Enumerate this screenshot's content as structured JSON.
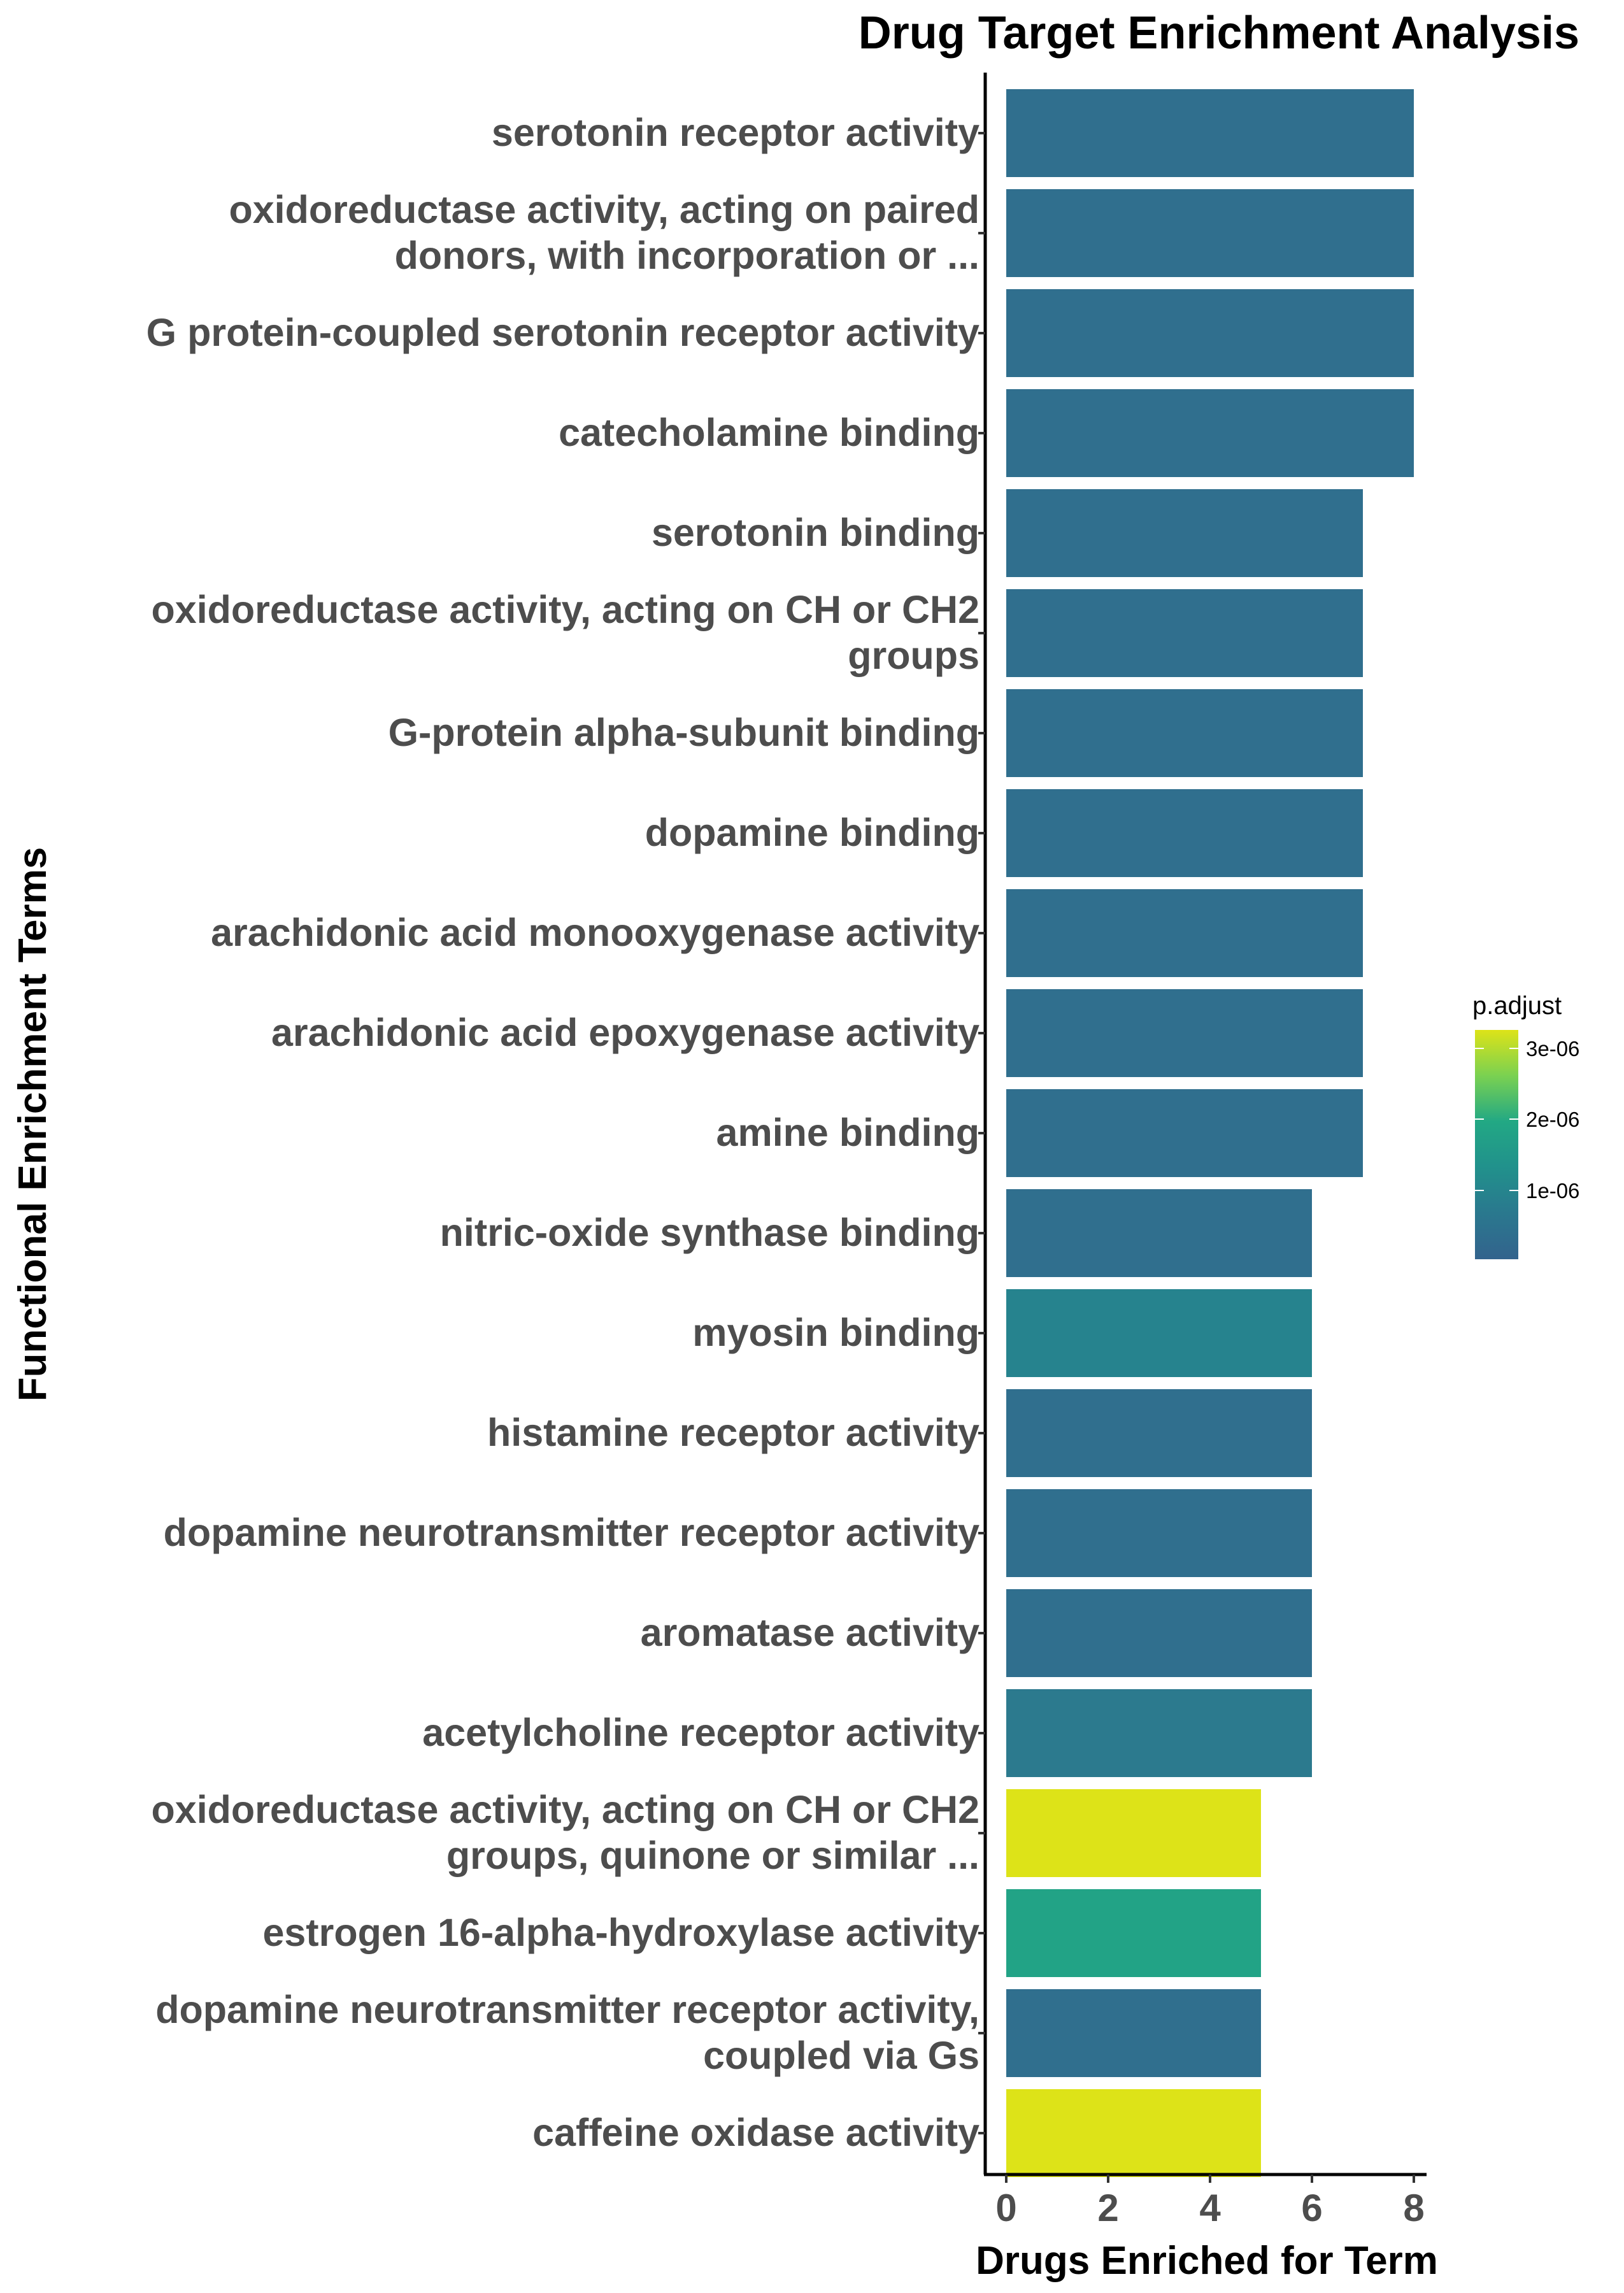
{
  "chart_data": {
    "type": "bar",
    "orientation": "horizontal",
    "title": "Drug Target Enrichment Analysis",
    "xlabel": "Drugs Enriched for Term",
    "ylabel": "Functional Enrichment Terms",
    "xlim": [
      0,
      8.4
    ],
    "xticks": [
      "0",
      "2",
      "4",
      "6",
      "8"
    ],
    "grid": false,
    "categories": [
      "serotonin receptor activity",
      "oxidoreductase activity, acting on paired\ndonors, with incorporation or ...",
      "G protein-coupled serotonin receptor activity",
      "catecholamine binding",
      "serotonin binding",
      "oxidoreductase activity, acting on CH or CH2\ngroups",
      "G-protein alpha-subunit binding",
      "dopamine binding",
      "arachidonic acid monooxygenase activity",
      "arachidonic acid epoxygenase activity",
      "amine binding",
      "nitric-oxide synthase binding",
      "myosin binding",
      "histamine receptor activity",
      "dopamine neurotransmitter receptor activity",
      "aromatase activity",
      "acetylcholine receptor activity",
      "oxidoreductase activity, acting on CH or CH2\ngroups, quinone or similar ...",
      "estrogen 16-alpha-hydroxylase activity",
      "dopamine neurotransmitter receptor activity,\ncoupled via Gs",
      "caffeine oxidase activity"
    ],
    "values": [
      8,
      8,
      8,
      8,
      7,
      7,
      7,
      7,
      7,
      7,
      7,
      6,
      6,
      6,
      6,
      6,
      6,
      5,
      5,
      5,
      5
    ],
    "bar_colors": [
      "#306f8e",
      "#306f8e",
      "#306f8e",
      "#306f8e",
      "#306f8e",
      "#306f8e",
      "#306f8e",
      "#306f8e",
      "#306f8e",
      "#306f8e",
      "#306f8e",
      "#306f8e",
      "#26838e",
      "#306f8e",
      "#306f8e",
      "#306f8e",
      "#2c7a8e",
      "#dde318",
      "#22a386",
      "#306f8e",
      "#dde318"
    ],
    "legend": {
      "title": "p.adjust",
      "placement": "right",
      "ticks": [
        "3e-06",
        "2e-06",
        "1e-06"
      ],
      "gradient": [
        "#dde318",
        "#7ad151",
        "#22a884",
        "#21918c",
        "#2a788e",
        "#33638d"
      ]
    }
  }
}
